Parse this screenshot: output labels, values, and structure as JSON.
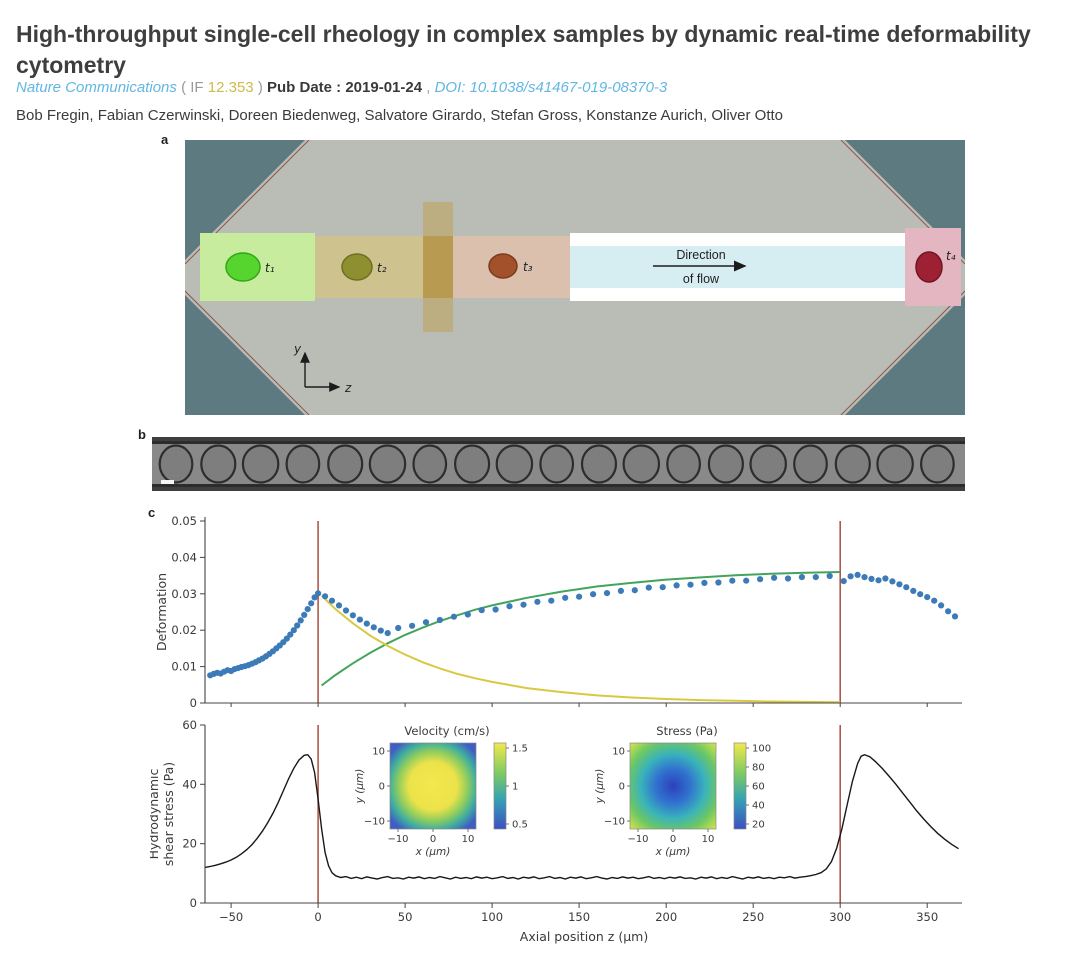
{
  "header": {
    "title": "High-throughput single-cell rheology in complex samples by dynamic real-time deformability cytometry",
    "journal": "Nature Communications",
    "if_prefix": "( IF",
    "if_value": "12.353",
    "if_suffix": ")",
    "pub_date": "Pub Date : 2019-01-24",
    "sep": ",",
    "doi": "DOI: 10.1038/s41467-019-08370-3",
    "authors": "Bob Fregin, Fabian Czerwinski, Doreen Biedenweg, Salvatore Girardo, Stefan Gross, Konstanze Aurich, Oliver Otto"
  },
  "figure": {
    "panel_a_label": "a",
    "panel_b_label": "b",
    "panel_c_label": "c",
    "cell_labels": {
      "t1": "t₁",
      "t2": "t₂",
      "t3": "t₃",
      "t4": "t₄"
    },
    "flow_line1": "Direction",
    "flow_line2": "of flow",
    "axis_y": "y",
    "axis_z": "z"
  },
  "chart_data": [
    {
      "type": "scatter",
      "ylabel": "Deformation",
      "ylim": [
        0,
        0.05
      ],
      "yticks": [
        0,
        0.01,
        0.02,
        0.03,
        0.04,
        0.05
      ],
      "xlim": [
        -65,
        370
      ],
      "marker_color": "#3c7ab8",
      "vline_color": "#b2564a",
      "vlines": [
        0,
        300
      ],
      "scatter": [
        [
          -62,
          0.0076
        ],
        [
          -60,
          0.008
        ],
        [
          -58,
          0.0083
        ],
        [
          -56,
          0.0081
        ],
        [
          -54,
          0.0086
        ],
        [
          -52,
          0.009
        ],
        [
          -50,
          0.0088
        ],
        [
          -48,
          0.0093
        ],
        [
          -46,
          0.0096
        ],
        [
          -44,
          0.0099
        ],
        [
          -42,
          0.0101
        ],
        [
          -40,
          0.0104
        ],
        [
          -38,
          0.0108
        ],
        [
          -36,
          0.0112
        ],
        [
          -34,
          0.0117
        ],
        [
          -32,
          0.0122
        ],
        [
          -30,
          0.0128
        ],
        [
          -28,
          0.0135
        ],
        [
          -26,
          0.0142
        ],
        [
          -24,
          0.015
        ],
        [
          -22,
          0.0158
        ],
        [
          -20,
          0.0167
        ],
        [
          -18,
          0.0177
        ],
        [
          -16,
          0.0188
        ],
        [
          -14,
          0.02
        ],
        [
          -12,
          0.0213
        ],
        [
          -10,
          0.0227
        ],
        [
          -8,
          0.0242
        ],
        [
          -6,
          0.0258
        ],
        [
          -4,
          0.0274
        ],
        [
          -2,
          0.029
        ],
        [
          0,
          0.0301
        ],
        [
          4,
          0.0293
        ],
        [
          8,
          0.0281
        ],
        [
          12,
          0.0268
        ],
        [
          16,
          0.0254
        ],
        [
          20,
          0.0241
        ],
        [
          24,
          0.0229
        ],
        [
          28,
          0.0218
        ],
        [
          32,
          0.0208
        ],
        [
          36,
          0.0199
        ],
        [
          40,
          0.0192
        ],
        [
          46,
          0.0206
        ],
        [
          54,
          0.0212
        ],
        [
          62,
          0.0222
        ],
        [
          70,
          0.0228
        ],
        [
          78,
          0.0237
        ],
        [
          86,
          0.0243
        ],
        [
          94,
          0.0255
        ],
        [
          102,
          0.0257
        ],
        [
          110,
          0.0266
        ],
        [
          118,
          0.027
        ],
        [
          126,
          0.0278
        ],
        [
          134,
          0.0281
        ],
        [
          142,
          0.0289
        ],
        [
          150,
          0.0292
        ],
        [
          158,
          0.0299
        ],
        [
          166,
          0.0302
        ],
        [
          174,
          0.0308
        ],
        [
          182,
          0.031
        ],
        [
          190,
          0.0317
        ],
        [
          198,
          0.0318
        ],
        [
          206,
          0.0323
        ],
        [
          214,
          0.0325
        ],
        [
          222,
          0.033
        ],
        [
          230,
          0.0331
        ],
        [
          238,
          0.0336
        ],
        [
          246,
          0.0336
        ],
        [
          254,
          0.034
        ],
        [
          262,
          0.0344
        ],
        [
          270,
          0.0342
        ],
        [
          278,
          0.0346
        ],
        [
          286,
          0.0346
        ],
        [
          294,
          0.0349
        ],
        [
          302,
          0.0335
        ],
        [
          306,
          0.0348
        ],
        [
          310,
          0.0352
        ],
        [
          314,
          0.0346
        ],
        [
          318,
          0.0341
        ],
        [
          322,
          0.0337
        ],
        [
          326,
          0.0342
        ],
        [
          330,
          0.0334
        ],
        [
          334,
          0.0326
        ],
        [
          338,
          0.0318
        ],
        [
          342,
          0.0308
        ],
        [
          346,
          0.0299
        ],
        [
          350,
          0.0291
        ],
        [
          354,
          0.0281
        ],
        [
          358,
          0.0268
        ],
        [
          362,
          0.0252
        ],
        [
          366,
          0.0238
        ]
      ],
      "series": [
        {
          "name": "relaxation-fit-curve",
          "color": "#44a45c",
          "points": [
            [
              2,
              0.0048
            ],
            [
              10,
              0.0077
            ],
            [
              20,
              0.0109
            ],
            [
              30,
              0.0138
            ],
            [
              40,
              0.0164
            ],
            [
              50,
              0.0187
            ],
            [
              60,
              0.0207
            ],
            [
              70,
              0.0225
            ],
            [
              80,
              0.0241
            ],
            [
              90,
              0.0256
            ],
            [
              100,
              0.0268
            ],
            [
              120,
              0.0289
            ],
            [
              140,
              0.0306
            ],
            [
              160,
              0.032
            ],
            [
              180,
              0.033
            ],
            [
              200,
              0.0339
            ],
            [
              220,
              0.0345
            ],
            [
              240,
              0.0351
            ],
            [
              260,
              0.0355
            ],
            [
              280,
              0.0358
            ],
            [
              300,
              0.036
            ]
          ]
        },
        {
          "name": "decay-fit-curve",
          "color": "#d9c940",
          "points": [
            [
              2,
              0.0295
            ],
            [
              10,
              0.0258
            ],
            [
              20,
              0.0219
            ],
            [
              30,
              0.0185
            ],
            [
              40,
              0.0157
            ],
            [
              50,
              0.0133
            ],
            [
              60,
              0.0112
            ],
            [
              70,
              0.0095
            ],
            [
              80,
              0.008
            ],
            [
              90,
              0.0068
            ],
            [
              100,
              0.0058
            ],
            [
              120,
              0.0041
            ],
            [
              140,
              0.003
            ],
            [
              160,
              0.0021
            ],
            [
              180,
              0.0015
            ],
            [
              200,
              0.0011
            ],
            [
              220,
              0.0008
            ],
            [
              240,
              0.0006
            ],
            [
              260,
              0.0004
            ],
            [
              280,
              0.0003
            ],
            [
              300,
              0.0002
            ]
          ]
        }
      ]
    },
    {
      "type": "line",
      "ylabel_line1": "Hydrodynamic",
      "ylabel_line2": "shear stress (Pa)",
      "xlabel": "Axial position z (µm)",
      "ylim": [
        0,
        60
      ],
      "yticks": [
        0,
        20,
        40,
        60
      ],
      "xticks": [
        -50,
        0,
        50,
        100,
        150,
        200,
        250,
        300,
        350
      ],
      "xlim": [
        -65,
        370
      ],
      "line_color": "#181818",
      "vline_color": "#b2564a",
      "vlines": [
        0,
        300
      ],
      "points": [
        [
          -65,
          12
        ],
        [
          -62,
          12.3
        ],
        [
          -59,
          12.7
        ],
        [
          -56,
          13.2
        ],
        [
          -53,
          13.8
        ],
        [
          -50,
          14.5
        ],
        [
          -47,
          15.4
        ],
        [
          -44,
          16.6
        ],
        [
          -41,
          18
        ],
        [
          -38,
          19.7
        ],
        [
          -35,
          21.8
        ],
        [
          -32,
          24.2
        ],
        [
          -29,
          27
        ],
        [
          -26,
          30.2
        ],
        [
          -23,
          33.8
        ],
        [
          -20,
          37.8
        ],
        [
          -17,
          41.8
        ],
        [
          -14,
          45.4
        ],
        [
          -11,
          48.2
        ],
        [
          -8,
          49.8
        ],
        [
          -6,
          50
        ],
        [
          -4,
          48.5
        ],
        [
          -2,
          44
        ],
        [
          0,
          35
        ],
        [
          2,
          25
        ],
        [
          4,
          17
        ],
        [
          6,
          12.5
        ],
        [
          8,
          10.2
        ],
        [
          10,
          9.2
        ],
        [
          13,
          8.6
        ],
        [
          16,
          8.9
        ],
        [
          19,
          8.3
        ],
        [
          22,
          8.7
        ],
        [
          25,
          8.2
        ],
        [
          28,
          8.8
        ],
        [
          31,
          8.4
        ],
        [
          34,
          8.1
        ],
        [
          37,
          8.6
        ],
        [
          40,
          8.9
        ],
        [
          43,
          8.3
        ],
        [
          46,
          8.5
        ],
        [
          49,
          8.1
        ],
        [
          52,
          8.7
        ],
        [
          55,
          8.4
        ],
        [
          58,
          8.8
        ],
        [
          61,
          8.2
        ],
        [
          64,
          8.6
        ],
        [
          67,
          8.3
        ],
        [
          70,
          8.9
        ],
        [
          73,
          8.5
        ],
        [
          76,
          8.1
        ],
        [
          79,
          8.7
        ],
        [
          82,
          8.3
        ],
        [
          85,
          8.6
        ],
        [
          88,
          8.2
        ],
        [
          91,
          8.8
        ],
        [
          94,
          8.4
        ],
        [
          97,
          8.7
        ],
        [
          100,
          8.2
        ],
        [
          103,
          8.5
        ],
        [
          106,
          8.9
        ],
        [
          109,
          8.3
        ],
        [
          112,
          8.6
        ],
        [
          115,
          8.1
        ],
        [
          118,
          8.7
        ],
        [
          121,
          8.4
        ],
        [
          124,
          8.8
        ],
        [
          127,
          8.2
        ],
        [
          130,
          8.5
        ],
        [
          133,
          8.9
        ],
        [
          136,
          8.3
        ],
        [
          139,
          8.6
        ],
        [
          142,
          8.1
        ],
        [
          145,
          8.7
        ],
        [
          148,
          8.4
        ],
        [
          151,
          8.8
        ],
        [
          154,
          8.2
        ],
        [
          157,
          8.5
        ],
        [
          160,
          8.9
        ],
        [
          163,
          8.4
        ],
        [
          166,
          8.1
        ],
        [
          169,
          8.6
        ],
        [
          172,
          8.3
        ],
        [
          175,
          8.8
        ],
        [
          178,
          8.4
        ],
        [
          181,
          8.7
        ],
        [
          184,
          8.2
        ],
        [
          187,
          8.5
        ],
        [
          190,
          8.9
        ],
        [
          193,
          8.3
        ],
        [
          196,
          8.6
        ],
        [
          199,
          8.2
        ],
        [
          202,
          8.7
        ],
        [
          205,
          8.4
        ],
        [
          208,
          8.8
        ],
        [
          211,
          8.3
        ],
        [
          214,
          8.5
        ],
        [
          217,
          8.1
        ],
        [
          220,
          8.7
        ],
        [
          223,
          8.4
        ],
        [
          226,
          8.8
        ],
        [
          229,
          8.2
        ],
        [
          232,
          8.6
        ],
        [
          235,
          8.3
        ],
        [
          238,
          8.9
        ],
        [
          241,
          8.5
        ],
        [
          244,
          8.1
        ],
        [
          247,
          8.7
        ],
        [
          250,
          8.4
        ],
        [
          253,
          8.8
        ],
        [
          256,
          8.3
        ],
        [
          259,
          8.6
        ],
        [
          262,
          8.2
        ],
        [
          265,
          8.7
        ],
        [
          268,
          8.5
        ],
        [
          271,
          8.9
        ],
        [
          274,
          8.4
        ],
        [
          277,
          8.7
        ],
        [
          280,
          8.9
        ],
        [
          283,
          9.2
        ],
        [
          286,
          9.6
        ],
        [
          289,
          10.2
        ],
        [
          292,
          11.5
        ],
        [
          295,
          14
        ],
        [
          298,
          18.5
        ],
        [
          301,
          25
        ],
        [
          304,
          33
        ],
        [
          307,
          41
        ],
        [
          310,
          47
        ],
        [
          312,
          49.5
        ],
        [
          314,
          50
        ],
        [
          317,
          49.3
        ],
        [
          320,
          47.8
        ],
        [
          324,
          45.5
        ],
        [
          328,
          42.8
        ],
        [
          332,
          40
        ],
        [
          336,
          37
        ],
        [
          340,
          34
        ],
        [
          344,
          31
        ],
        [
          348,
          28.3
        ],
        [
          352,
          25.8
        ],
        [
          356,
          23.5
        ],
        [
          360,
          21.5
        ],
        [
          364,
          19.8
        ],
        [
          368,
          18.3
        ]
      ],
      "insets": [
        {
          "title": "Velocity (cm/s)",
          "xlabel": "x (µm)",
          "ylabel": "y (µm)",
          "xticks": [
            -10,
            0,
            10
          ],
          "yticks": [
            10,
            0,
            -10
          ],
          "colorbar_ticks": [
            1.5,
            1,
            0.5
          ],
          "pattern": "center-high"
        },
        {
          "title": "Stress (Pa)",
          "xlabel": "x (µm)",
          "ylabel": "y (µm)",
          "xticks": [
            -10,
            0,
            10
          ],
          "yticks": [
            10,
            0,
            -10
          ],
          "colorbar_ticks": [
            100,
            80,
            60,
            40,
            20
          ],
          "pattern": "center-low"
        }
      ]
    }
  ]
}
